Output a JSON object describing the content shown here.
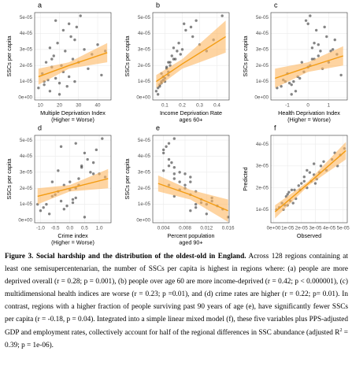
{
  "chart_data": [
    {
      "type": "scatter",
      "panel": "a",
      "xlabel": [
        "Multiple Deprivation Index",
        "(Higher = Worse)"
      ],
      "ylabel": "SSCs per capita",
      "xlim": [
        7,
        47
      ],
      "xticks": [
        10,
        20,
        30,
        40
      ],
      "ylim": [
        -1.5e-06,
        5.3e-05
      ],
      "yticks": [
        {
          "value": 0,
          "label": "0e+00"
        },
        {
          "value": 1e-05,
          "label": "1e-05"
        },
        {
          "value": 2e-05,
          "label": "2e-05"
        },
        {
          "value": 3e-05,
          "label": "3e-05"
        },
        {
          "value": 4e-05,
          "label": "4e-05"
        },
        {
          "value": 5e-05,
          "label": "5e-05"
        }
      ],
      "grid": true,
      "point_color": "#333333",
      "fit_color": "#f39c12",
      "band_color": "#fdb863",
      "x": [
        9,
        11,
        12,
        13,
        14,
        15,
        15,
        16,
        17,
        18,
        19,
        20,
        21,
        22,
        22,
        23,
        24,
        25,
        26,
        27,
        28,
        29,
        30,
        31,
        33,
        35,
        37,
        40,
        42,
        44,
        12,
        18,
        25,
        20,
        16,
        28
      ],
      "y": [
        6e-06,
        1.5e-05,
        8e-06,
        2.2e-05,
        1.1e-05,
        3.1e-05,
        4e-06,
        1.9e-05,
        2.6e-05,
        1.2e-05,
        3.4e-05,
        9e-06,
        2e-05,
        4.2e-05,
        1.6e-05,
        2.9e-05,
        7e-06,
        1.3e-05,
        3.8e-05,
        2.4e-05,
        1e-05,
        4.4e-05,
        2.2e-05,
        5.1e-05,
        3e-05,
        1.8e-05,
        2.7e-05,
        3.3e-05,
        1.4e-05,
        2.9e-05,
        1e-05,
        4.8e-05,
        4.6e-05,
        2e-06,
        2.4e-05,
        3.6e-05
      ],
      "fit": {
        "x": [
          9,
          25,
          45
        ],
        "y": [
          1.3e-05,
          2e-05,
          2.8e-05
        ],
        "lower": [
          8e-06,
          1.8e-05,
          2.2e-05
        ],
        "upper": [
          1.8e-05,
          2.2e-05,
          3.4e-05
        ]
      }
    },
    {
      "type": "scatter",
      "panel": "b",
      "xlabel": [
        "Income Deprivation Rate",
        "ages 60+"
      ],
      "ylabel": "SSCs per capita",
      "xlim": [
        0.03,
        0.47
      ],
      "xticks": [
        0.1,
        0.2,
        0.3,
        0.4
      ],
      "ylim": [
        -1.5e-06,
        5.3e-05
      ],
      "yticks": [
        {
          "value": 0,
          "label": "0e+00"
        },
        {
          "value": 1e-05,
          "label": "1e-05"
        },
        {
          "value": 2e-05,
          "label": "2e-05"
        },
        {
          "value": 3e-05,
          "label": "3e-05"
        },
        {
          "value": 4e-05,
          "label": "4e-05"
        },
        {
          "value": 5e-05,
          "label": "5e-05"
        }
      ],
      "grid": true,
      "point_color": "#333333",
      "fit_color": "#f39c12",
      "band_color": "#fdb863",
      "x": [
        0.06,
        0.08,
        0.07,
        0.12,
        0.09,
        0.15,
        0.05,
        0.11,
        0.14,
        0.1,
        0.18,
        0.08,
        0.13,
        0.22,
        0.12,
        0.17,
        0.07,
        0.09,
        0.26,
        0.16,
        0.1,
        0.25,
        0.13,
        0.43,
        0.2,
        0.11,
        0.19,
        0.3,
        0.12,
        0.34,
        0.08,
        0.28,
        0.21,
        0.06,
        0.15,
        0.38
      ],
      "y": [
        6e-06,
        1.5e-05,
        8e-06,
        2.2e-05,
        1.1e-05,
        3.1e-05,
        4e-06,
        1.9e-05,
        2.6e-05,
        1.2e-05,
        3.4e-05,
        9e-06,
        2e-05,
        4.2e-05,
        1.6e-05,
        2.9e-05,
        7e-06,
        1.3e-05,
        3.8e-05,
        2.4e-05,
        1e-05,
        4.4e-05,
        2.2e-05,
        5.1e-05,
        3e-05,
        1.8e-05,
        2.7e-05,
        3.3e-05,
        1.4e-05,
        2.9e-05,
        1e-05,
        4.8e-05,
        4.6e-05,
        2e-06,
        2.4e-05,
        3.6e-05
      ],
      "fit": {
        "x": [
          0.05,
          0.2,
          0.45
        ],
        "y": [
          1e-05,
          2.1e-05,
          3.8e-05
        ],
        "lower": [
          6e-06,
          1.8e-05,
          2.8e-05
        ],
        "upper": [
          1.4e-05,
          2.4e-05,
          4.8e-05
        ]
      }
    },
    {
      "type": "scatter",
      "panel": "c",
      "xlabel": [
        "Health Deprivation Index",
        "(Higher = Worse)"
      ],
      "ylabel": "SSCs per capita",
      "xlim": [
        -1.8,
        1.9
      ],
      "xticks": [
        -1,
        0,
        1
      ],
      "ylim": [
        -1.5e-06,
        5.3e-05
      ],
      "yticks": [
        {
          "value": 0,
          "label": "0e+00"
        },
        {
          "value": 1e-05,
          "label": "1e-05"
        },
        {
          "value": 2e-05,
          "label": "2e-05"
        },
        {
          "value": 3e-05,
          "label": "3e-05"
        },
        {
          "value": 4e-05,
          "label": "4e-05"
        },
        {
          "value": 5e-05,
          "label": "5e-05"
        }
      ],
      "grid": true,
      "point_color": "#333333",
      "fit_color": "#f39c12",
      "band_color": "#fdb863",
      "x": [
        -1.5,
        -1.0,
        -0.8,
        -0.3,
        -1.2,
        0.2,
        -0.6,
        0.0,
        0.5,
        -0.4,
        0.3,
        -0.9,
        0.1,
        0.4,
        -0.2,
        0.6,
        -1.3,
        -0.5,
        0.9,
        0.2,
        -0.7,
        0.8,
        1.0,
        0.1,
        1.2,
        0.7,
        1.4,
        0.5,
        1.6,
        1.1,
        -1.1,
        -0.1,
        0.0,
        -0.8,
        0.3,
        1.3
      ],
      "y": [
        6e-06,
        1.5e-05,
        8e-06,
        2.2e-05,
        1.1e-05,
        3.1e-05,
        4e-06,
        1.9e-05,
        2.6e-05,
        1.2e-05,
        3.4e-05,
        9e-06,
        2e-05,
        4.2e-05,
        1.6e-05,
        2.9e-05,
        7e-06,
        1.3e-05,
        3.8e-05,
        2.4e-05,
        1e-05,
        4.4e-05,
        2.2e-05,
        5.1e-05,
        3e-05,
        1.8e-05,
        2.7e-05,
        3.3e-05,
        1.4e-05,
        2.9e-05,
        1e-05,
        4.8e-05,
        4.6e-05,
        2e-06,
        2.4e-05,
        3.6e-05
      ],
      "fit": {
        "x": [
          -1.6,
          0,
          1.7
        ],
        "y": [
          1.2e-05,
          1.9e-05,
          2.6e-05
        ],
        "lower": [
          6e-06,
          1.6e-05,
          2e-05
        ],
        "upper": [
          1.8e-05,
          2.2e-05,
          3.2e-05
        ]
      }
    },
    {
      "type": "scatter",
      "panel": "d",
      "xlabel": [
        "Crime index",
        "(Higher = Worse)"
      ],
      "ylabel": "SSCs per capita",
      "xlim": [
        -1.2,
        1.4
      ],
      "xticks": [
        {
          "value": -1,
          "label": "-1.0"
        },
        {
          "value": -0.5,
          "label": "-0.5"
        },
        {
          "value": 0,
          "label": "0.0"
        },
        {
          "value": 0.5,
          "label": "0.5"
        },
        {
          "value": 1,
          "label": "1.0"
        }
      ],
      "ylim": [
        -1.5e-06,
        5.3e-05
      ],
      "yticks": [
        {
          "value": 0,
          "label": "0e+00"
        },
        {
          "value": 1e-05,
          "label": "1e-05"
        },
        {
          "value": 2e-05,
          "label": "2e-05"
        },
        {
          "value": 3e-05,
          "label": "3e-05"
        },
        {
          "value": 4e-05,
          "label": "4e-05"
        },
        {
          "value": 5e-05,
          "label": "5e-05"
        }
      ],
      "grid": true,
      "point_color": "#333333",
      "fit_color": "#f39c12",
      "band_color": "#fdb863",
      "x": [
        -1.0,
        -0.6,
        -0.9,
        -0.2,
        0.1,
        -0.4,
        -0.7,
        0.0,
        0.3,
        -0.3,
        0.4,
        -0.1,
        0.2,
        0.5,
        -0.5,
        0.8,
        -0.2,
        0.1,
        0.6,
        0.0,
        -0.8,
        0.9,
        0.3,
        1.1,
        0.7,
        -0.4,
        1.2,
        0.4,
        0.2,
        1.0,
        -1.1,
        0.2,
        -0.3,
        0.5,
        -0.6,
        0.8
      ],
      "y": [
        6e-06,
        1.5e-05,
        8e-06,
        2.2e-05,
        1.1e-05,
        3.1e-05,
        4e-06,
        1.9e-05,
        2.6e-05,
        1.2e-05,
        3.4e-05,
        9e-06,
        2e-05,
        4.2e-05,
        1.6e-05,
        2.9e-05,
        7e-06,
        1.3e-05,
        3.8e-05,
        2.4e-05,
        1e-05,
        4.4e-05,
        2.2e-05,
        5.1e-05,
        3e-05,
        1.8e-05,
        2.7e-05,
        3.3e-05,
        1.4e-05,
        2.9e-05,
        1e-05,
        4.8e-05,
        4.6e-05,
        2e-06,
        2.4e-05,
        3.6e-05
      ],
      "fit": {
        "x": [
          -1.1,
          0,
          1.3
        ],
        "y": [
          1.5e-05,
          2e-05,
          2.6e-05
        ],
        "lower": [
          1e-05,
          1.8e-05,
          2e-05
        ],
        "upper": [
          2e-05,
          2.2e-05,
          3.2e-05
        ]
      }
    },
    {
      "type": "scatter",
      "panel": "e",
      "xlabel": [
        "Percent population",
        "aged 90+"
      ],
      "ylabel": "SSCs per capita",
      "xlim": [
        0.002,
        0.0162
      ],
      "xticks": [
        0.004,
        0.008,
        0.012,
        0.016
      ],
      "ylim": [
        -1.5e-06,
        5.3e-05
      ],
      "yticks": [
        {
          "value": 0,
          "label": "0e+00"
        },
        {
          "value": 1e-05,
          "label": "1e-05"
        },
        {
          "value": 2e-05,
          "label": "2e-05"
        },
        {
          "value": 3e-05,
          "label": "3e-05"
        },
        {
          "value": 4e-05,
          "label": "4e-05"
        },
        {
          "value": 5e-05,
          "label": "5e-05"
        }
      ],
      "grid": true,
      "point_color": "#333333",
      "fit_color": "#f39c12",
      "band_color": "#fdb863",
      "x": [
        0.009,
        0.006,
        0.01,
        0.005,
        0.011,
        0.004,
        0.012,
        0.007,
        0.006,
        0.013,
        0.005,
        0.014,
        0.008,
        0.004,
        0.009,
        0.006,
        0.015,
        0.011,
        0.005,
        0.007,
        0.012,
        0.004,
        0.008,
        0.006,
        0.007,
        0.01,
        0.009,
        0.006,
        0.013,
        0.008,
        0.01,
        0.005,
        0.0045,
        0.016,
        0.009,
        0.0055
      ],
      "y": [
        6e-06,
        1.5e-05,
        8e-06,
        2.2e-05,
        1.1e-05,
        3.1e-05,
        4e-06,
        1.9e-05,
        2.6e-05,
        1.2e-05,
        3.4e-05,
        9e-06,
        2e-05,
        4.2e-05,
        1.6e-05,
        2.9e-05,
        7e-06,
        1.3e-05,
        3.8e-05,
        2.4e-05,
        1e-05,
        4.4e-05,
        2.2e-05,
        5.1e-05,
        3e-05,
        1.8e-05,
        2.7e-05,
        3.3e-05,
        1.4e-05,
        2.9e-05,
        1e-05,
        4.8e-05,
        4.6e-05,
        2e-06,
        2.4e-05,
        3.6e-05
      ],
      "fit": {
        "x": [
          0.003,
          0.009,
          0.016
        ],
        "y": [
          2.3e-05,
          1.6e-05,
          6e-06
        ],
        "lower": [
          1.8e-05,
          1.3e-05,
          -1e-06
        ],
        "upper": [
          2.8e-05,
          1.9e-05,
          1.3e-05
        ]
      }
    },
    {
      "type": "scatter",
      "panel": "f",
      "xlabel": [
        "Observed"
      ],
      "ylabel": "Predicted",
      "xlim": [
        -2e-06,
        5.3e-05
      ],
      "xticks": [
        {
          "value": 0,
          "label": "0e+00"
        },
        {
          "value": 1e-05,
          "label": "1e-05"
        },
        {
          "value": 2e-05,
          "label": "2e-05"
        },
        {
          "value": 3e-05,
          "label": "3e-05"
        },
        {
          "value": 4e-05,
          "label": "4e-05"
        },
        {
          "value": 5e-05,
          "label": "5e-05"
        }
      ],
      "ylim": [
        4e-06,
        4.4e-05
      ],
      "yticks": [
        {
          "value": 1e-05,
          "label": "1e-05"
        },
        {
          "value": 2e-05,
          "label": "2e-05"
        },
        {
          "value": 3e-05,
          "label": "3e-05"
        },
        {
          "value": 4e-05,
          "label": "4e-05"
        }
      ],
      "grid": true,
      "point_color": "#333333",
      "fit_color": "#f39c12",
      "band_color": "#fdb863",
      "x": [
        6e-06,
        1.5e-05,
        8e-06,
        2.2e-05,
        1.1e-05,
        3.1e-05,
        4e-06,
        1.9e-05,
        2.6e-05,
        1.2e-05,
        3.4e-05,
        9e-06,
        2e-05,
        4.2e-05,
        1.6e-05,
        2.9e-05,
        7e-06,
        1.3e-05,
        3.8e-05,
        2.4e-05,
        1e-05,
        4.4e-05,
        2.2e-05,
        5.1e-05,
        3e-05,
        1.8e-05,
        2.7e-05,
        3.3e-05,
        1.4e-05,
        2.9e-05,
        1e-05,
        4.8e-05,
        4.6e-05,
        2e-06,
        2.4e-05,
        3.6e-05
      ],
      "y": [
        1.3e-05,
        1.9e-05,
        1.2e-05,
        2.3e-05,
        1.8e-05,
        2.4e-05,
        1.1e-05,
        1.9e-05,
        2.7e-05,
        1.4e-05,
        3e-05,
        1.6e-05,
        2.2e-05,
        3.3e-05,
        1.5e-05,
        2.6e-05,
        1e-05,
        1.9e-05,
        2.8e-05,
        2e-05,
        1.7e-05,
        3.6e-05,
        2.5e-05,
        3.8e-05,
        2.2e-05,
        2.1e-05,
        2.3e-05,
        2.7e-05,
        1.3e-05,
        3.1e-05,
        1.2e-05,
        3.5e-05,
        3e-05,
        1e-05,
        2.8e-05,
        3.2e-05
      ],
      "fit": {
        "x": [
          1e-06,
          2.5e-05,
          5.2e-05
        ],
        "y": [
          9e-06,
          2.2e-05,
          3.7e-05
        ],
        "lower": [
          6e-06,
          2.1e-05,
          3.3e-05
        ],
        "upper": [
          1.2e-05,
          2.3e-05,
          4.1e-05
        ]
      }
    }
  ],
  "caption": {
    "title": "Figure 3. Social hardship and the distribution of the oldest-old in England.",
    "body": " Across 128 regions containing at least one semisupercentenarian, the number of SSCs per capita is highest in regions where: (a) people are more deprived overall (r = 0.28; p = 0.001), (b) people over age 60 are more income-deprived (r = 0.42; p < 0.000001), (c) multidimensional health indices are worse (r = 0.23; p =0.01), and (d) crime rates are higher (r = 0.22; p= 0.01). In contrast, regions with a higher fraction of people surviving past 90 years of age (e), have significantly fewer SSCs per capita (r = -0.18, p = 0.04). Integrated into a simple linear mixed model (f), these five variables plus PPS-adjusted GDP and employment rates, collectively account for half of the regional differences in SSC abundance (adjusted R",
    "sup": "2",
    "end": " = 0.39; p = 1e-06)."
  }
}
